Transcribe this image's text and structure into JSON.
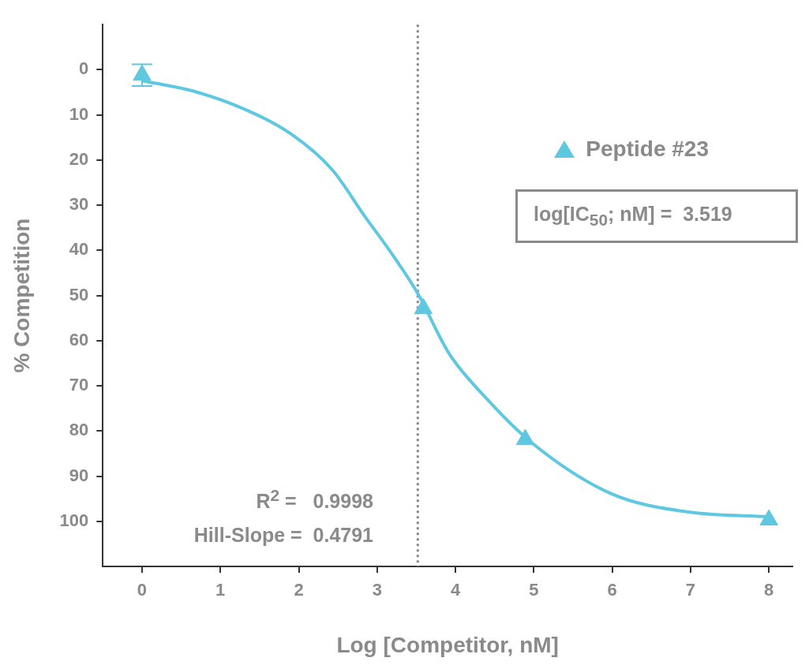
{
  "chart_data": {
    "type": "scatter",
    "xlabel": "Log [Competitor, nM]",
    "ylabel": "% Competition",
    "xlim": [
      -0.5,
      8.3
    ],
    "xticks": [
      0,
      1,
      2,
      3,
      4,
      5,
      6,
      7,
      8
    ],
    "ylim": [
      110,
      -10
    ],
    "yticks": [
      0,
      10,
      20,
      30,
      40,
      50,
      60,
      70,
      80,
      90,
      100
    ],
    "grid": false,
    "legend": "top right",
    "series": [
      {
        "name": "Peptide #23",
        "marker": "triangle",
        "color": "#5ec8e0",
        "x": [
          0,
          3.59,
          4.89,
          8
        ],
        "values": [
          1.2,
          52.9,
          81.9,
          99.7
        ],
        "errors": [
          2.4,
          null,
          null,
          null
        ]
      },
      {
        "type": "line",
        "marker": "none",
        "color": "#5ec8e0",
        "x": [
          0,
          0.69,
          1.29,
          1.9,
          2.43,
          2.84,
          3.17,
          3.51,
          3.92,
          4.38,
          4.98,
          5.99,
          7.0,
          8.0
        ],
        "values": [
          2.4,
          4.9,
          8.6,
          14.2,
          22.2,
          32.4,
          40.3,
          49.3,
          62.9,
          72.5,
          82.7,
          93.9,
          98,
          99
        ]
      }
    ],
    "ref_lines": [
      {
        "axis": "x",
        "value": 3.519,
        "color": "#888888",
        "line_style": "dotted"
      }
    ],
    "annotations": [
      "log[IC$_{50}$; nM] =  3.519",
      "R$^{2}$ =   0.9998",
      "Hill-Slope =  0.4791"
    ]
  }
}
